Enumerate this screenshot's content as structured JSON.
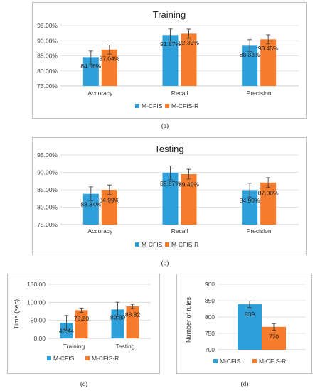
{
  "colors": {
    "series1": "#2e9fd9",
    "series2": "#f47c2c"
  },
  "chart_data": [
    {
      "type": "bar",
      "title": "Training",
      "caption": "(a)",
      "categories": [
        "Accuracy",
        "Recall",
        "Precision"
      ],
      "series": [
        {
          "name": "M-CFIS",
          "values": [
            84.56,
            91.87,
            88.33
          ],
          "labels": [
            "84.56%",
            "91.87%",
            "88.33%"
          ],
          "errors": [
            2.0,
            2.0,
            2.0
          ]
        },
        {
          "name": "M-CFIS-R",
          "values": [
            87.04,
            92.32,
            90.45
          ],
          "labels": [
            "87.04%",
            "92.32%",
            "90.45%"
          ],
          "errors": [
            1.5,
            1.5,
            1.5
          ]
        }
      ],
      "ylim": [
        75,
        95
      ],
      "yticks": [
        75,
        80,
        85,
        90,
        95
      ],
      "ytick_labels": [
        "75.00%",
        "80.00%",
        "85.00%",
        "90.00%",
        "95.00%"
      ],
      "ylabel": "",
      "grid": true,
      "legend": "bottom"
    },
    {
      "type": "bar",
      "title": "Testing",
      "caption": "(b)",
      "categories": [
        "Accuracy",
        "Recall",
        "Precision"
      ],
      "series": [
        {
          "name": "M-CFIS",
          "values": [
            83.84,
            89.87,
            84.9
          ],
          "labels": [
            "83.84%",
            "89.87%",
            "84.90%"
          ],
          "errors": [
            2.0,
            2.0,
            2.0
          ]
        },
        {
          "name": "M-CFIS-R",
          "values": [
            84.99,
            89.49,
            87.08
          ],
          "labels": [
            "84.99%",
            "89.49%",
            "87.08%"
          ],
          "errors": [
            1.4,
            1.4,
            1.4
          ]
        }
      ],
      "ylim": [
        75,
        95
      ],
      "yticks": [
        75,
        80,
        85,
        90,
        95
      ],
      "ytick_labels": [
        "75.00%",
        "80.00%",
        "85.00%",
        "90.00%",
        "95.00%"
      ],
      "ylabel": "",
      "grid": true,
      "legend": "bottom"
    },
    {
      "type": "bar",
      "title": "",
      "caption": "(c)",
      "categories": [
        "Training",
        "Testing"
      ],
      "series": [
        {
          "name": "M-CFIS",
          "values": [
            43.44,
            80.3
          ],
          "labels": [
            "43.44",
            "80.30"
          ],
          "errors": [
            20,
            20
          ]
        },
        {
          "name": "M-CFIS-R",
          "values": [
            78.2,
            88.82
          ],
          "labels": [
            "78.20",
            "88.82"
          ],
          "errors": [
            6,
            6
          ]
        }
      ],
      "ylim": [
        0,
        150
      ],
      "yticks": [
        0,
        50,
        100,
        150
      ],
      "ytick_labels": [
        "0.00",
        "50.00",
        "100.00",
        "150.00"
      ],
      "ylabel": "Time (sec)",
      "grid": true,
      "legend": "bottom"
    },
    {
      "type": "bar",
      "title": "",
      "caption": "(d)",
      "categories": [
        ""
      ],
      "series": [
        {
          "name": "M-CFIS",
          "values": [
            839
          ],
          "labels": [
            "839"
          ],
          "errors": [
            10
          ]
        },
        {
          "name": "M-CFIS-R",
          "values": [
            770
          ],
          "labels": [
            "770"
          ],
          "errors": [
            10
          ]
        }
      ],
      "ylim": [
        700,
        900
      ],
      "yticks": [
        700,
        750,
        800,
        850,
        900
      ],
      "ytick_labels": [
        "700",
        "750",
        "800",
        "850",
        "900"
      ],
      "ylabel": "Number of rules",
      "grid": true,
      "legend": "bottom"
    }
  ]
}
